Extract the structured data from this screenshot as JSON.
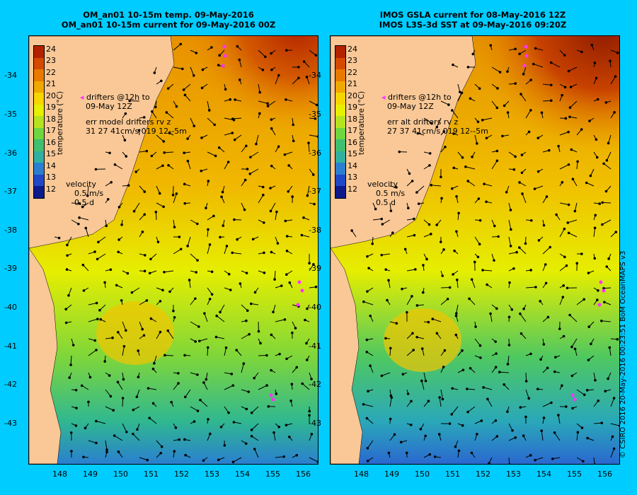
{
  "left_panel": {
    "title_line1": "OM_an01 10-15m temp. 09-May-2016",
    "title_line2": "OM_an01 10-15m current for 09-May-2016 00Z",
    "drifters_line1": "drifters @12h to",
    "drifters_line2": "09-May 12Z",
    "err_line1": "err model drifters rv z",
    "err_line2": "31 27 41cm/s 019 12--5m",
    "velocity_label": "velocity",
    "velocity_speed": "0.5 m/s",
    "velocity_time": "0.5 d"
  },
  "right_panel": {
    "title_line1": "IMOS GSLA current for 08-May-2016 12Z",
    "title_line2": "IMOS L3S-3d SST at 09-May-2016 09:20Z",
    "drifters_line1": "drifters @12h to",
    "drifters_line2": "09-May 12Z",
    "err_line1": "err alt drifters rv z",
    "err_line2": "27 37 41cm/s 019 12--5m",
    "velocity_label": "velocity",
    "velocity_speed": "0.5 m/s",
    "velocity_time": "0.5 d"
  },
  "colorbar": {
    "label": "temperature (°C)",
    "ticks": [
      "24",
      "23",
      "22",
      "21",
      "20",
      "19",
      "18",
      "17",
      "16",
      "15",
      "14",
      "13",
      "12"
    ],
    "colors": [
      "#b22200",
      "#d44a00",
      "#e87a00",
      "#f0a800",
      "#f7d600",
      "#e6f000",
      "#b5e31f",
      "#6fd640",
      "#3fbf6f",
      "#2fb0a0",
      "#2a7fd0",
      "#1f48c8",
      "#0c1a8c"
    ]
  },
  "y_ticks": [
    "-34",
    "-35",
    "-36",
    "-37",
    "-38",
    "-39",
    "-40",
    "-41",
    "-42",
    "-43"
  ],
  "x_ticks": [
    "148",
    "149",
    "150",
    "151",
    "152",
    "153",
    "154",
    "155",
    "156"
  ],
  "credit": "© CSIRO 2016   20-May-2016 00:23:51 BoM OceanMAPS v3",
  "colors": {
    "background": "#00ccff",
    "land": "#f9c896",
    "drifter": "#ff33ff"
  }
}
